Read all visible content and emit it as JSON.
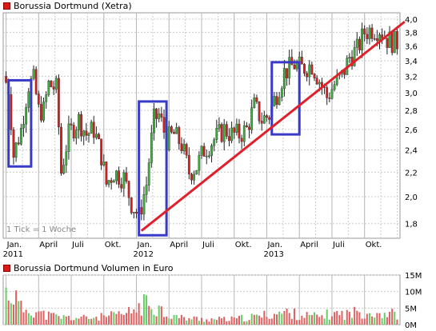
{
  "header": {
    "title": "Borussia Dortmund (Xetra)",
    "volume_title": "Borussia Dortmund Volumen in Euro",
    "tick_note": "1 Tick = 1 Woche"
  },
  "colors": {
    "up": "#3bb03b",
    "down": "#d41f1f",
    "trendline": "#e0202a",
    "box": "#3a3ac8",
    "volume": "#e06060",
    "volume_up": "#66cc66"
  },
  "chart_data": [
    {
      "type": "candlestick",
      "title": "Borussia Dortmund (Xetra)",
      "x_ticks": [
        {
          "label": "Jan.",
          "sublabel": "2011",
          "week": 0
        },
        {
          "label": "April",
          "week": 13
        },
        {
          "label": "Juli",
          "week": 26
        },
        {
          "label": "Okt.",
          "week": 39
        },
        {
          "label": "Jan.",
          "sublabel": "2012",
          "week": 52
        },
        {
          "label": "April",
          "week": 65
        },
        {
          "label": "Juli",
          "week": 78
        },
        {
          "label": "Okt.",
          "week": 91
        },
        {
          "label": "Jan.",
          "sublabel": "2013",
          "week": 104
        },
        {
          "label": "April",
          "week": 117
        },
        {
          "label": "Juli",
          "week": 130
        },
        {
          "label": "Okt.",
          "week": 143
        }
      ],
      "y_ticks": [
        1.8,
        2.0,
        2.2,
        2.4,
        2.6,
        2.8,
        3.0,
        3.2,
        3.4,
        3.6,
        3.8,
        4.0
      ],
      "y_scale": "log",
      "ylim": [
        1.7,
        4.1
      ],
      "weeks_total": 157,
      "keypoints": [
        [
          0,
          3.2
        ],
        [
          2,
          3.05
        ],
        [
          4,
          2.35
        ],
        [
          7,
          2.6
        ],
        [
          10,
          3.1
        ],
        [
          12,
          3.15
        ],
        [
          14,
          2.8
        ],
        [
          16,
          2.8
        ],
        [
          18,
          3.1
        ],
        [
          21,
          3.05
        ],
        [
          23,
          2.2
        ],
        [
          26,
          2.55
        ],
        [
          30,
          2.7
        ],
        [
          33,
          2.55
        ],
        [
          36,
          2.6
        ],
        [
          39,
          2.35
        ],
        [
          41,
          2.1
        ],
        [
          44,
          2.2
        ],
        [
          48,
          2.15
        ],
        [
          51,
          1.95
        ],
        [
          54,
          1.85
        ],
        [
          57,
          2.1
        ],
        [
          60,
          2.7
        ],
        [
          62,
          2.75
        ],
        [
          65,
          2.5
        ],
        [
          68,
          2.55
        ],
        [
          71,
          2.45
        ],
        [
          74,
          2.2
        ],
        [
          77,
          2.25
        ],
        [
          80,
          2.4
        ],
        [
          84,
          2.5
        ],
        [
          88,
          2.6
        ],
        [
          91,
          2.55
        ],
        [
          94,
          2.55
        ],
        [
          97,
          2.6
        ],
        [
          100,
          2.85
        ],
        [
          103,
          2.7
        ],
        [
          106,
          2.75
        ],
        [
          109,
          3.0
        ],
        [
          112,
          3.25
        ],
        [
          116,
          3.35
        ],
        [
          119,
          3.3
        ],
        [
          123,
          3.35
        ],
        [
          126,
          3.15
        ],
        [
          129,
          2.95
        ],
        [
          132,
          3.1
        ],
        [
          135,
          3.2
        ],
        [
          138,
          3.45
        ],
        [
          141,
          3.55
        ],
        [
          144,
          3.8
        ],
        [
          147,
          3.85
        ],
        [
          150,
          3.85
        ],
        [
          153,
          3.7
        ],
        [
          156,
          3.65
        ]
      ],
      "trendline": {
        "from": {
          "week": 54,
          "value": 1.75
        },
        "to": {
          "week": 159,
          "value": 3.96
        }
      },
      "highlight_boxes": [
        {
          "week_from": 1,
          "week_to": 10,
          "value_low": 2.25,
          "value_high": 3.15
        },
        {
          "week_from": 53,
          "week_to": 64,
          "value_low": 1.72,
          "value_high": 2.9
        },
        {
          "week_from": 106,
          "week_to": 117,
          "value_low": 2.55,
          "value_high": 3.38
        }
      ]
    },
    {
      "type": "bar",
      "title": "Borussia Dortmund Volumen in Euro",
      "y_ticks": [
        {
          "value": 0,
          "label": "0M"
        },
        {
          "value": 5,
          "label": "5M"
        },
        {
          "value": 10,
          "label": "10M"
        },
        {
          "value": 15,
          "label": "15M"
        }
      ],
      "ylim": [
        0,
        15
      ],
      "unit": "M",
      "weeks_total": 157,
      "keypoints": [
        [
          0,
          12
        ],
        [
          3,
          11.5
        ],
        [
          6,
          6
        ],
        [
          10,
          6
        ],
        [
          14,
          4
        ],
        [
          20,
          3
        ],
        [
          26,
          2.5
        ],
        [
          32,
          2.5
        ],
        [
          40,
          3
        ],
        [
          48,
          4
        ],
        [
          52,
          6
        ],
        [
          56,
          8
        ],
        [
          60,
          7
        ],
        [
          64,
          4
        ],
        [
          70,
          2.5
        ],
        [
          80,
          2
        ],
        [
          90,
          2
        ],
        [
          100,
          3
        ],
        [
          106,
          4
        ],
        [
          112,
          4.5
        ],
        [
          118,
          3.5
        ],
        [
          124,
          3
        ],
        [
          130,
          4
        ],
        [
          136,
          4
        ],
        [
          142,
          5
        ],
        [
          148,
          4.5
        ],
        [
          156,
          4
        ]
      ]
    }
  ]
}
